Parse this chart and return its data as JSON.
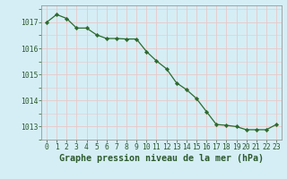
{
  "x": [
    0,
    1,
    2,
    3,
    4,
    5,
    6,
    7,
    8,
    9,
    10,
    11,
    12,
    13,
    14,
    15,
    16,
    17,
    18,
    19,
    20,
    21,
    22,
    23
  ],
  "y": [
    1017.0,
    1017.3,
    1017.15,
    1016.78,
    1016.78,
    1016.52,
    1016.38,
    1016.38,
    1016.36,
    1016.36,
    1015.88,
    1015.52,
    1015.22,
    1014.68,
    1014.42,
    1014.08,
    1013.58,
    1013.08,
    1013.05,
    1013.0,
    1012.88,
    1012.88,
    1012.88,
    1013.08
  ],
  "line_color": "#2d6a2d",
  "marker": "D",
  "marker_size": 2.2,
  "bg_color": "#d5eef5",
  "grid_color": "#e8c8c8",
  "title": "Graphe pression niveau de la mer (hPa)",
  "title_color": "#2d5a2d",
  "yticks": [
    1013,
    1014,
    1015,
    1016,
    1017
  ],
  "xticks": [
    0,
    1,
    2,
    3,
    4,
    5,
    6,
    7,
    8,
    9,
    10,
    11,
    12,
    13,
    14,
    15,
    16,
    17,
    18,
    19,
    20,
    21,
    22,
    23
  ],
  "xlabels": [
    "0",
    "1",
    "2",
    "3",
    "4",
    "5",
    "6",
    "7",
    "8",
    "9",
    "10",
    "11",
    "12",
    "13",
    "14",
    "15",
    "16",
    "17",
    "18",
    "19",
    "20",
    "21",
    "22",
    "23"
  ],
  "ylim": [
    1012.5,
    1017.65
  ],
  "xlim": [
    -0.5,
    23.5
  ],
  "tick_color": "#2d5a2d",
  "tick_fontsize": 5.8,
  "title_fontsize": 7.2,
  "spine_color": "#999999"
}
